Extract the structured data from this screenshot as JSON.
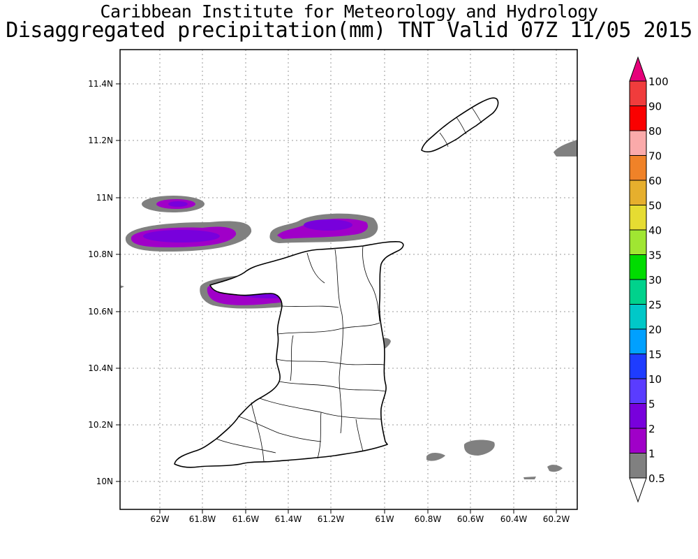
{
  "title": {
    "line1": "Caribbean Institute for Meteorology and Hydrology",
    "line2": "Disaggregated precipitation(mm) TNT Valid 07Z 11/05 2015"
  },
  "map": {
    "region": "Trinidad and Tobago",
    "x_ticks": [
      "62W",
      "61.8W",
      "61.6W",
      "61.4W",
      "61.2W",
      "61W",
      "60.8W",
      "60.6W",
      "60.4W",
      "60.2W"
    ],
    "y_ticks": [
      "11.4N",
      "11.2N",
      "11N",
      "10.8N",
      "10.6N",
      "10.4N",
      "10.2N",
      "10N"
    ],
    "grid": true
  },
  "legend": {
    "levels": [
      {
        "label": "0.5",
        "color": "#ffffff"
      },
      {
        "label": "1",
        "color": "#808080"
      },
      {
        "label": "2",
        "color": "#a000c8"
      },
      {
        "label": "5",
        "color": "#7800dc"
      },
      {
        "label": "10",
        "color": "#5a3cff"
      },
      {
        "label": "15",
        "color": "#1e3cff"
      },
      {
        "label": "20",
        "color": "#00a0ff"
      },
      {
        "label": "25",
        "color": "#00c8c8"
      },
      {
        "label": "30",
        "color": "#00d28c"
      },
      {
        "label": "35",
        "color": "#00dc00"
      },
      {
        "label": "40",
        "color": "#a0e632"
      },
      {
        "label": "50",
        "color": "#e6dc32"
      },
      {
        "label": "60",
        "color": "#e6af2d"
      },
      {
        "label": "70",
        "color": "#f08228"
      },
      {
        "label": "80",
        "color": "#faaaaa"
      },
      {
        "label": "90",
        "color": "#fa0000"
      },
      {
        "label": "100",
        "color": "#f03c3c"
      }
    ],
    "top_arrow_color": "#e6007a",
    "bottom_arrow_color": "#ffffff"
  }
}
